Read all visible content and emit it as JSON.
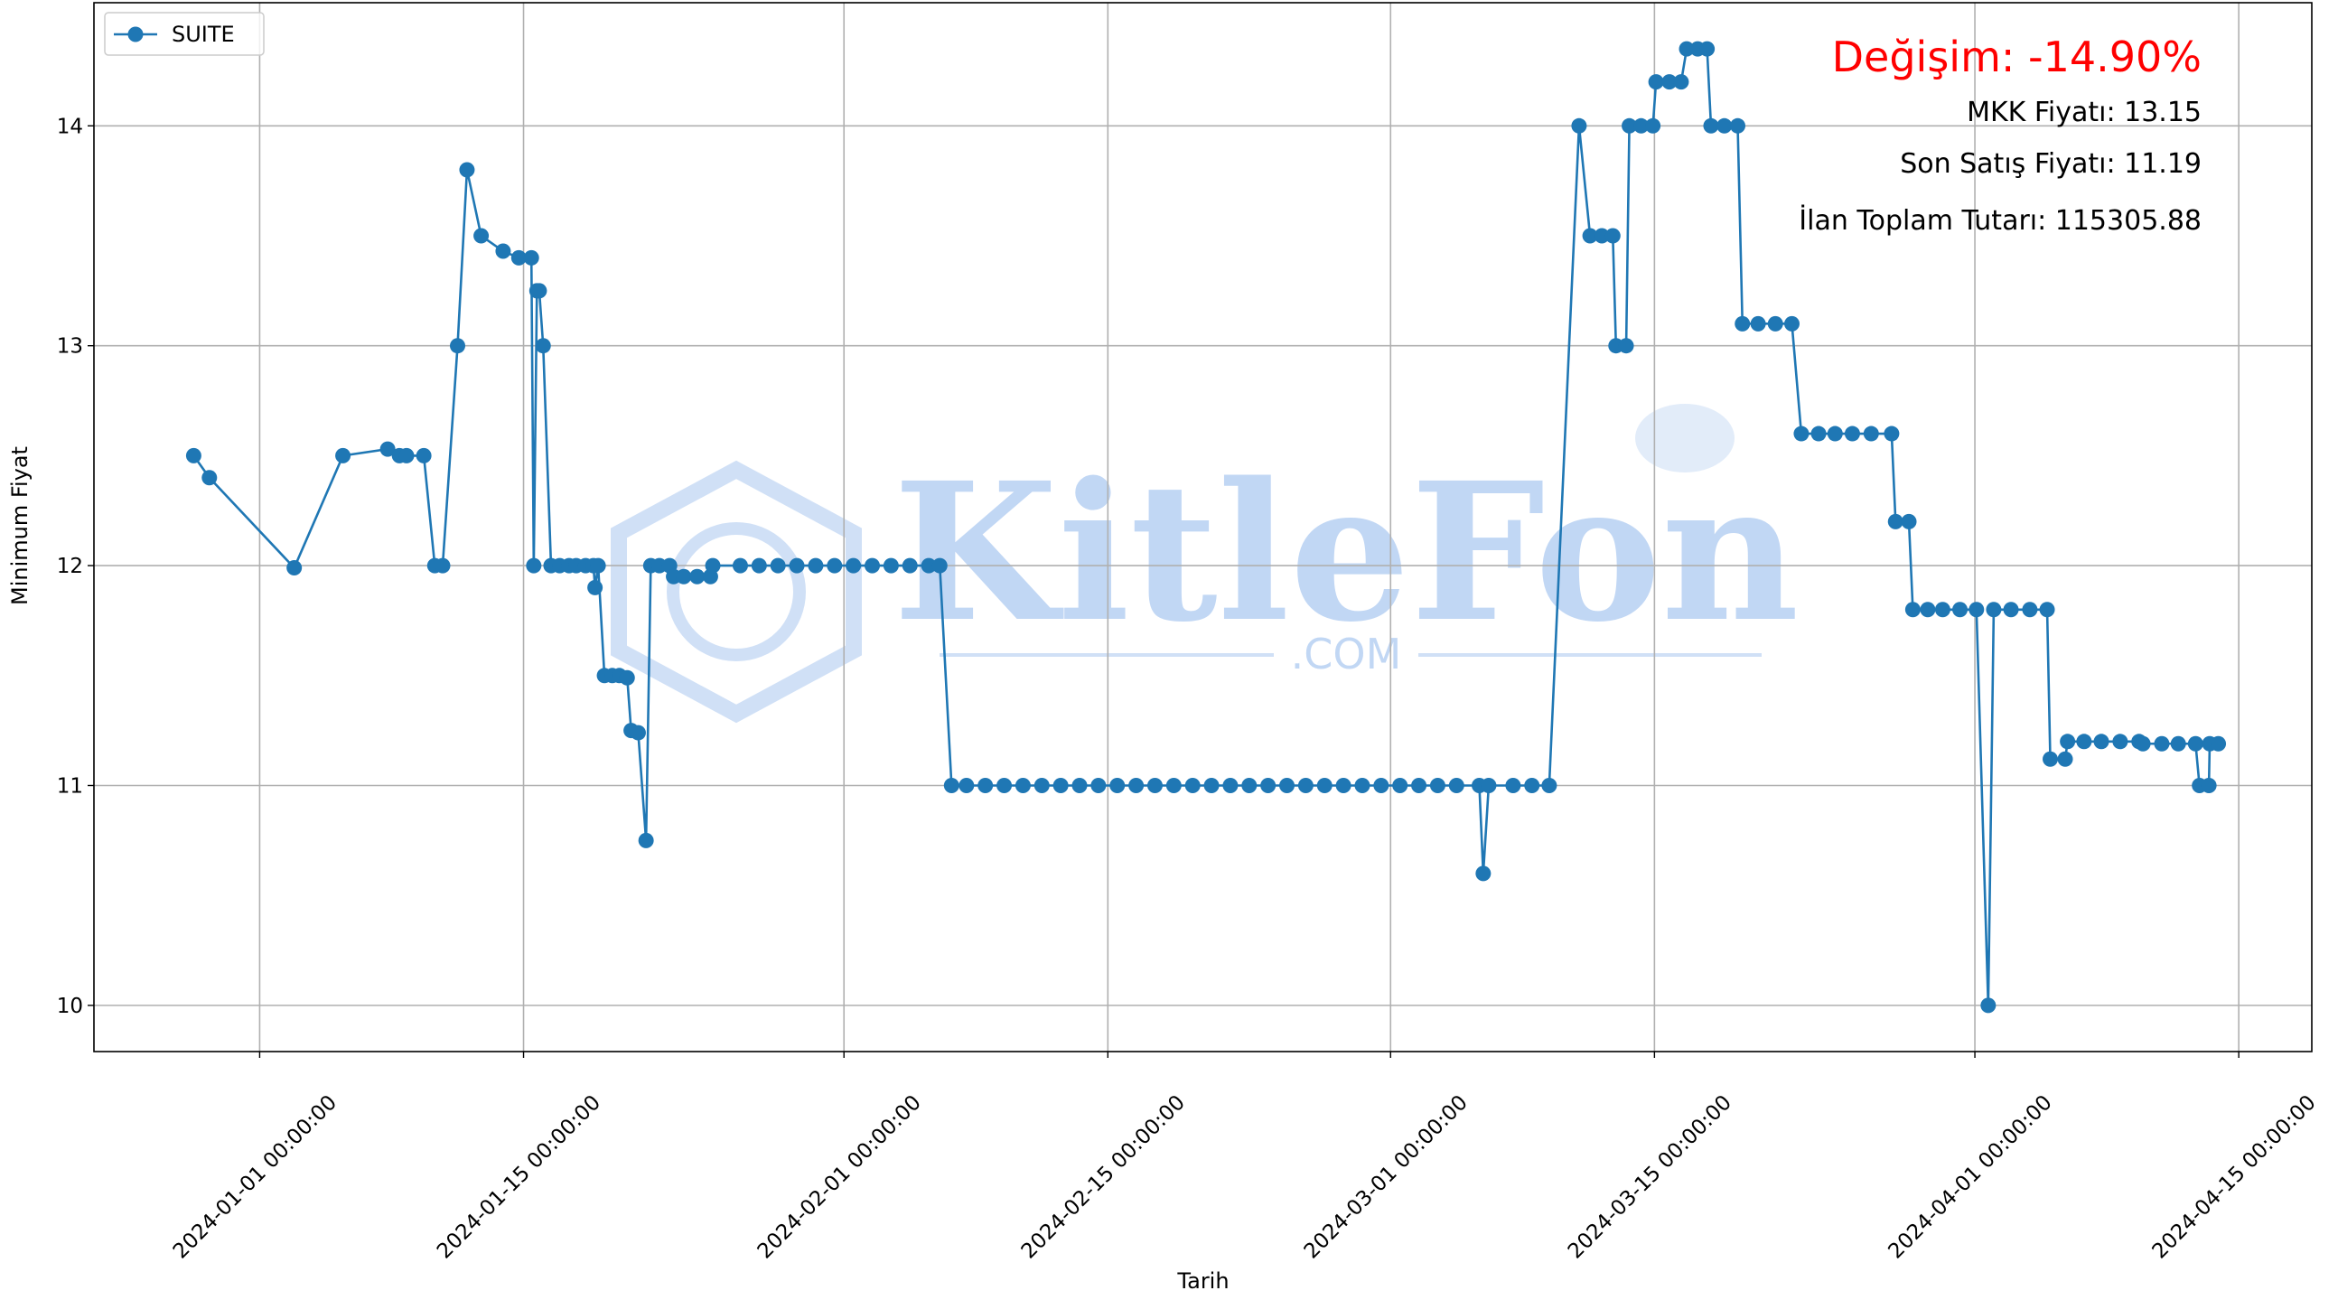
{
  "chart_data": {
    "type": "line",
    "xlabel": "Tarih",
    "ylabel": "Minimum Fiyat",
    "watermark": [
      "KitleFon",
      ".COM"
    ],
    "annotations": [
      {
        "text": "Değişim: -14.90%",
        "color": "#ff0000"
      },
      {
        "text": "MKK Fiyatı: 13.15",
        "color": "#000000"
      },
      {
        "text": "Son Satış Fiyatı: 11.19",
        "color": "#000000"
      },
      {
        "text": "İlan Toplam Tutarı: 115305.88",
        "color": "#000000"
      }
    ],
    "legend": "upper left",
    "grid": true,
    "xlim": [
      "2023-12-23 05:00",
      "2024-04-18 21:00"
    ],
    "xticks": [
      "2024-01-01 00:00:00",
      "2024-01-15 00:00:00",
      "2024-02-01 00:00:00",
      "2024-02-15 00:00:00",
      "2024-03-01 00:00:00",
      "2024-03-15 00:00:00",
      "2024-04-01 00:00:00",
      "2024-04-15 00:00:00"
    ],
    "ylim": [
      9.79,
      14.56
    ],
    "yticks": [
      10,
      11,
      12,
      13,
      14
    ],
    "x": [
      "2023-12-28 12:00",
      "2023-12-29 08:00",
      "2024-01-02 20:00",
      "2024-01-05 10:00",
      "2024-01-07 19:00",
      "2024-01-08 10:00",
      "2024-01-08 19:00",
      "2024-01-09 17:00",
      "2024-01-10 07:00",
      "2024-01-10 17:00",
      "2024-01-11 12:00",
      "2024-01-12 00:00",
      "2024-01-12 18:00",
      "2024-01-13 22:00",
      "2024-01-14 18:00",
      "2024-01-15 10:00",
      "2024-01-15 13:00",
      "2024-01-15 17:00",
      "2024-01-15 20:00",
      "2024-01-16 01:00",
      "2024-01-16 11:00",
      "2024-01-16 22:00",
      "2024-01-17 10:00",
      "2024-01-17 19:00",
      "2024-01-18 07:00",
      "2024-01-18 17:00",
      "2024-01-18 19:00",
      "2024-01-18 23:00",
      "2024-01-19 07:00",
      "2024-01-19 17:00",
      "2024-01-20 02:00",
      "2024-01-20 12:00",
      "2024-01-20 17:00",
      "2024-01-21 02:00",
      "2024-01-21 12:00",
      "2024-01-21 18:00",
      "2024-01-22 05:00",
      "2024-01-22 18:00",
      "2024-01-22 23:00",
      "2024-01-23 12:00",
      "2024-01-24 05:00",
      "2024-01-24 22:00",
      "2024-01-25 01:00",
      "2024-01-26 12:00",
      "2024-01-27 12:00",
      "2024-01-28 12:00",
      "2024-01-29 12:00",
      "2024-01-30 12:00",
      "2024-01-31 12:00",
      "2024-02-01 12:00",
      "2024-02-02 12:00",
      "2024-02-03 12:00",
      "2024-02-04 12:00",
      "2024-02-05 12:00",
      "2024-02-06 02:00",
      "2024-02-06 17:00",
      "2024-02-07 12:00",
      "2024-02-08 12:00",
      "2024-02-09 12:00",
      "2024-02-10 12:00",
      "2024-02-11 12:00",
      "2024-02-12 12:00",
      "2024-02-13 12:00",
      "2024-02-14 12:00",
      "2024-02-15 12:00",
      "2024-02-16 12:00",
      "2024-02-17 12:00",
      "2024-02-18 12:00",
      "2024-02-19 12:00",
      "2024-02-20 12:00",
      "2024-02-21 12:00",
      "2024-02-22 12:00",
      "2024-02-23 12:00",
      "2024-02-24 12:00",
      "2024-02-25 12:00",
      "2024-02-26 12:00",
      "2024-02-27 12:00",
      "2024-02-28 12:00",
      "2024-02-29 12:00",
      "2024-03-01 12:00",
      "2024-03-02 12:00",
      "2024-03-03 12:00",
      "2024-03-04 12:00",
      "2024-03-05 17:00",
      "2024-03-05 22:00",
      "2024-03-06 05:00",
      "2024-03-07 12:00",
      "2024-03-08 12:00",
      "2024-03-09 10:00",
      "2024-03-11 00:00",
      "2024-03-11 14:00",
      "2024-03-12 05:00",
      "2024-03-12 19:00",
      "2024-03-12 23:00",
      "2024-03-13 12:00",
      "2024-03-13 16:00",
      "2024-03-14 07:00",
      "2024-03-14 22:00",
      "2024-03-15 02:00",
      "2024-03-15 19:00",
      "2024-03-16 10:00",
      "2024-03-16 17:00",
      "2024-03-17 07:00",
      "2024-03-17 19:00",
      "2024-03-18 00:00",
      "2024-03-18 17:00",
      "2024-03-19 10:00",
      "2024-03-19 16:00",
      "2024-03-20 12:00",
      "2024-03-21 10:00",
      "2024-03-22 07:00",
      "2024-03-22 19:00",
      "2024-03-23 17:00",
      "2024-03-24 14:00",
      "2024-03-25 12:00",
      "2024-03-26 12:00",
      "2024-03-27 14:00",
      "2024-03-27 19:00",
      "2024-03-28 12:00",
      "2024-03-28 17:00",
      "2024-03-29 12:00",
      "2024-03-30 07:00",
      "2024-03-31 05:00",
      "2024-04-01 02:00",
      "2024-04-01 17:00",
      "2024-04-02 00:00",
      "2024-04-02 22:00",
      "2024-04-03 22:00",
      "2024-04-04 20:00",
      "2024-04-05 00:00",
      "2024-04-05 19:00",
      "2024-04-05 22:00",
      "2024-04-06 19:00",
      "2024-04-07 17:00",
      "2024-04-08 17:00",
      "2024-04-09 17:00",
      "2024-04-09 22:00",
      "2024-04-10 22:00",
      "2024-04-11 19:00",
      "2024-04-12 17:00",
      "2024-04-12 22:00",
      "2024-04-13 10:00",
      "2024-04-13 11:00",
      "2024-04-13 22:00"
    ],
    "series": [
      {
        "name": "SUITE",
        "color": "#1f77b4",
        "values": [
          12.5,
          12.4,
          11.99,
          12.5,
          12.53,
          12.5,
          12.5,
          12.5,
          12.0,
          12.0,
          13.0,
          13.8,
          13.5,
          13.43,
          13.4,
          13.4,
          12.0,
          13.25,
          13.25,
          13.0,
          12.0,
          12.0,
          12.0,
          12.0,
          12.0,
          12.0,
          11.9,
          12.0,
          11.5,
          11.5,
          11.5,
          11.49,
          11.25,
          11.24,
          10.75,
          12.0,
          12.0,
          12.0,
          11.95,
          11.95,
          11.95,
          11.95,
          12.0,
          12.0,
          12.0,
          12.0,
          12.0,
          12.0,
          12.0,
          12.0,
          12.0,
          12.0,
          12.0,
          12.0,
          12.0,
          11.0,
          11.0,
          11.0,
          11.0,
          11.0,
          11.0,
          11.0,
          11.0,
          11.0,
          11.0,
          11.0,
          11.0,
          11.0,
          11.0,
          11.0,
          11.0,
          11.0,
          11.0,
          11.0,
          11.0,
          11.0,
          11.0,
          11.0,
          11.0,
          11.0,
          11.0,
          11.0,
          11.0,
          11.0,
          10.6,
          11.0,
          11.0,
          11.0,
          11.0,
          14.0,
          13.5,
          13.5,
          13.5,
          13.0,
          13.0,
          14.0,
          14.0,
          14.0,
          14.2,
          14.2,
          14.2,
          14.35,
          14.35,
          14.35,
          14.0,
          14.0,
          14.0,
          13.1,
          13.1,
          13.1,
          13.1,
          12.6,
          12.6,
          12.6,
          12.6,
          12.6,
          12.6,
          12.2,
          12.2,
          11.8,
          11.8,
          11.8,
          11.8,
          11.8,
          10.0,
          11.8,
          11.8,
          11.8,
          11.8,
          11.12,
          11.12,
          11.2,
          11.2,
          11.2,
          11.2,
          11.2,
          11.19,
          11.19,
          11.19,
          11.19,
          11.0,
          11.0,
          11.19,
          11.19
        ]
      }
    ]
  }
}
